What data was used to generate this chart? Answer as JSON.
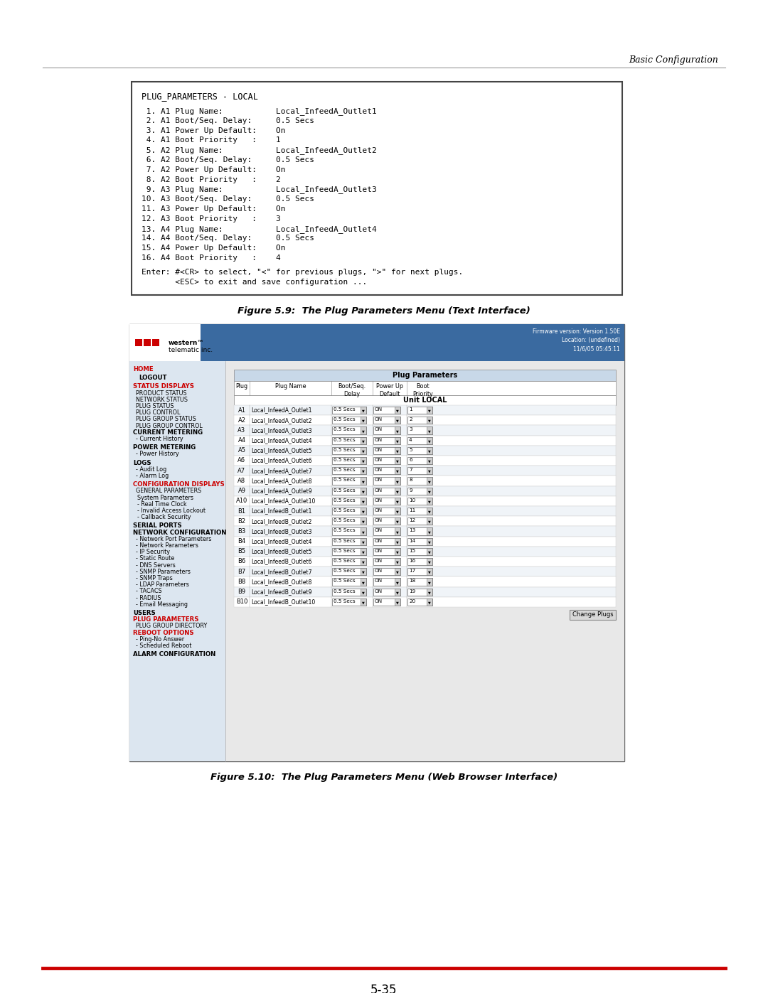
{
  "page_bg": "#ffffff",
  "header_text": "Basic Configuration",
  "top_line_color": "#999999",
  "bottom_line_color": "#cc0000",
  "page_number": "5-35",
  "terminal_box": {
    "title": "PLUG_PARAMETERS - LOCAL",
    "lines": [
      " 1. A1 Plug Name:           Local_InfeedA_Outlet1",
      " 2. A1 Boot/Seq. Delay:     0.5 Secs",
      " 3. A1 Power Up Default:    On",
      " 4. A1 Boot Priority   :    1",
      " 5. A2 Plug Name:           Local_InfeedA_Outlet2",
      " 6. A2 Boot/Seq. Delay:     0.5 Secs",
      " 7. A2 Power Up Default:    On",
      " 8. A2 Boot Priority   :    2",
      " 9. A3 Plug Name:           Local_InfeedA_Outlet3",
      "10. A3 Boot/Seq. Delay:     0.5 Secs",
      "11. A3 Power Up Default:    On",
      "12. A3 Boot Priority   :    3",
      "13. A4 Plug Name:           Local_InfeedA_Outlet4",
      "14. A4 Boot/Seq. Delay:     0.5 Secs",
      "15. A4 Power Up Default:    On",
      "16. A4 Boot Priority   :    4"
    ],
    "footer_lines": [
      "Enter: #<CR> to select, \"<\" for previous plugs, \">\" for next plugs.",
      "       <ESC> to exit and save configuration ..."
    ]
  },
  "figure1_caption": "Figure 5.9:  The Plug Parameters Menu (Text Interface)",
  "figure2_caption": "Figure 5.10:  The Plug Parameters Menu (Web Browser Interface)",
  "web_interface": {
    "firmware_text": "Firmware version: Version 1.50E\nLocation: (undefined)\n11/6/05 05:45:11",
    "nav_items": [
      {
        "text": "HOME",
        "bold": true,
        "red": true,
        "indent": 0
      },
      {
        "text": "",
        "bold": false,
        "red": false,
        "indent": 0
      },
      {
        "text": "LOGOUT",
        "bold": true,
        "red": false,
        "indent": 8
      },
      {
        "text": "",
        "bold": false,
        "red": false,
        "indent": 0
      },
      {
        "text": "STATUS DISPLAYS",
        "bold": true,
        "red": true,
        "indent": 0
      },
      {
        "text": "PRODUCT STATUS",
        "bold": false,
        "red": false,
        "indent": 4
      },
      {
        "text": "NETWORK STATUS",
        "bold": false,
        "red": false,
        "indent": 4
      },
      {
        "text": "PLUG STATUS",
        "bold": false,
        "red": false,
        "indent": 4
      },
      {
        "text": "PLUG CONTROL",
        "bold": false,
        "red": false,
        "indent": 4
      },
      {
        "text": "PLUG GROUP STATUS",
        "bold": false,
        "red": false,
        "indent": 4
      },
      {
        "text": "PLUG GROUP CONTROL",
        "bold": false,
        "red": false,
        "indent": 4
      },
      {
        "text": "CURRENT METERING",
        "bold": true,
        "red": false,
        "indent": 0
      },
      {
        "text": "- Current History",
        "bold": false,
        "red": false,
        "indent": 4
      },
      {
        "text": "",
        "bold": false,
        "red": false,
        "indent": 0
      },
      {
        "text": "POWER METERING",
        "bold": true,
        "red": false,
        "indent": 0
      },
      {
        "text": "- Power History",
        "bold": false,
        "red": false,
        "indent": 4
      },
      {
        "text": "",
        "bold": false,
        "red": false,
        "indent": 0
      },
      {
        "text": "LOGS",
        "bold": true,
        "red": false,
        "indent": 0
      },
      {
        "text": "- Audit Log",
        "bold": false,
        "red": false,
        "indent": 4
      },
      {
        "text": "- Alarm Log",
        "bold": false,
        "red": false,
        "indent": 4
      },
      {
        "text": "",
        "bold": false,
        "red": false,
        "indent": 0
      },
      {
        "text": "CONFIGURATION DISPLAYS",
        "bold": true,
        "red": true,
        "indent": 0
      },
      {
        "text": "GENERAL PARAMETERS",
        "bold": false,
        "red": false,
        "indent": 4
      },
      {
        "text": "System Parameters",
        "bold": false,
        "red": false,
        "indent": 6
      },
      {
        "text": "- Real Time Clock",
        "bold": false,
        "red": false,
        "indent": 6
      },
      {
        "text": "- Invalid Access Lockout",
        "bold": false,
        "red": false,
        "indent": 6
      },
      {
        "text": "- Callback Security",
        "bold": false,
        "red": false,
        "indent": 6
      },
      {
        "text": "",
        "bold": false,
        "red": false,
        "indent": 0
      },
      {
        "text": "SERIAL PORTS",
        "bold": true,
        "red": false,
        "indent": 0
      },
      {
        "text": "NETWORK CONFIGURATION",
        "bold": true,
        "red": false,
        "indent": 0
      },
      {
        "text": "- Network Port Parameters",
        "bold": false,
        "red": false,
        "indent": 4
      },
      {
        "text": "- Network Parameters",
        "bold": false,
        "red": false,
        "indent": 4
      },
      {
        "text": "- IP Security",
        "bold": false,
        "red": false,
        "indent": 4
      },
      {
        "text": "- Static Route",
        "bold": false,
        "red": false,
        "indent": 4
      },
      {
        "text": "- DNS Servers",
        "bold": false,
        "red": false,
        "indent": 4
      },
      {
        "text": "- SNMP Parameters",
        "bold": false,
        "red": false,
        "indent": 4
      },
      {
        "text": "- SNMP Traps",
        "bold": false,
        "red": false,
        "indent": 4
      },
      {
        "text": "- LDAP Parameters",
        "bold": false,
        "red": false,
        "indent": 4
      },
      {
        "text": "- TACACS",
        "bold": false,
        "red": false,
        "indent": 4
      },
      {
        "text": "- RADIUS",
        "bold": false,
        "red": false,
        "indent": 4
      },
      {
        "text": "- Email Messaging",
        "bold": false,
        "red": false,
        "indent": 4
      },
      {
        "text": "",
        "bold": false,
        "red": false,
        "indent": 0
      },
      {
        "text": "USERS",
        "bold": true,
        "red": false,
        "indent": 0
      },
      {
        "text": "PLUG PARAMETERS",
        "bold": true,
        "red": true,
        "indent": 0
      },
      {
        "text": "PLUG GROUP DIRECTORY",
        "bold": false,
        "red": false,
        "indent": 4
      },
      {
        "text": "REBOOT OPTIONS",
        "bold": true,
        "red": true,
        "indent": 0
      },
      {
        "text": "- Ping-No Answer",
        "bold": false,
        "red": false,
        "indent": 4
      },
      {
        "text": "- Scheduled Reboot",
        "bold": false,
        "red": false,
        "indent": 4
      },
      {
        "text": "",
        "bold": false,
        "red": false,
        "indent": 0
      },
      {
        "text": "ALARM CONFIGURATION",
        "bold": true,
        "red": false,
        "indent": 0
      }
    ],
    "unit_header": "Unit LOCAL",
    "plug_rows": [
      [
        "A1",
        "Local_InfeedA_Outlet1",
        "0.5 Secs",
        "ON",
        "1"
      ],
      [
        "A2",
        "Local_InfeedA_Outlet2",
        "0.5 Secs",
        "ON",
        "2"
      ],
      [
        "A3",
        "Local_InfeedA_Outlet3",
        "0.5 Secs",
        "ON",
        "3"
      ],
      [
        "A4",
        "Local_InfeedA_Outlet4",
        "0.5 Secs",
        "ON",
        "4"
      ],
      [
        "A5",
        "Local_InfeedA_Outlet5",
        "0.5 Secs",
        "ON",
        "5"
      ],
      [
        "A6",
        "Local_InfeedA_Outlet6",
        "0.5 Secs",
        "ON",
        "6"
      ],
      [
        "A7",
        "Local_InfeedA_Outlet7",
        "0.5 Secs",
        "ON",
        "7"
      ],
      [
        "A8",
        "Local_InfeedA_Outlet8",
        "0.5 Secs",
        "ON",
        "8"
      ],
      [
        "A9",
        "Local_InfeedA_Outlet9",
        "0.5 Secs",
        "ON",
        "9"
      ],
      [
        "A10",
        "Local_InfeedA_Outlet10",
        "0.5 Secs",
        "ON",
        "10"
      ],
      [
        "B1",
        "Local_InfeedB_Outlet1",
        "0.5 Secs",
        "ON",
        "11"
      ],
      [
        "B2",
        "Local_InfeedB_Outlet2",
        "0.5 Secs",
        "ON",
        "12"
      ],
      [
        "B3",
        "Local_InfeedB_Outlet3",
        "0.5 Secs",
        "ON",
        "13"
      ],
      [
        "B4",
        "Local_InfeedB_Outlet4",
        "0.5 Secs",
        "ON",
        "14"
      ],
      [
        "B5",
        "Local_InfeedB_Outlet5",
        "0.5 Secs",
        "ON",
        "15"
      ],
      [
        "B6",
        "Local_InfeedB_Outlet6",
        "0.5 Secs",
        "ON",
        "16"
      ],
      [
        "B7",
        "Local_InfeedB_Outlet7",
        "0.5 Secs",
        "ON",
        "17"
      ],
      [
        "B8",
        "Local_InfeedB_Outlet8",
        "0.5 Secs",
        "ON",
        "18"
      ],
      [
        "B9",
        "Local_InfeedB_Outlet9",
        "0.5 Secs",
        "ON",
        "19"
      ],
      [
        "B10",
        "Local_InfeedB_Outlet10",
        "0.5 Secs",
        "ON",
        "20"
      ]
    ],
    "col_headers": [
      "Plug",
      "Plug Name",
      "Boot/Seq.\nDelay",
      "Power Up\nDefault",
      "Boot\nPriority"
    ]
  }
}
